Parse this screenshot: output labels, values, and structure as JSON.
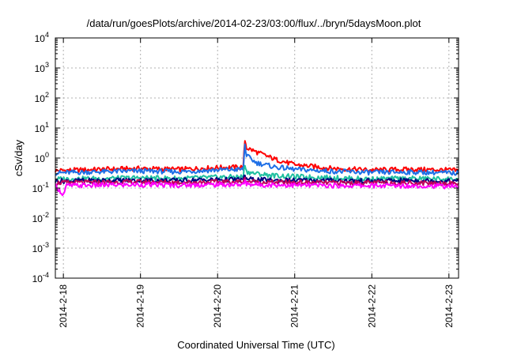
{
  "chart_data": {
    "type": "line",
    "title": "/data/run/goesPlots/archive/2014-02-23/03:00/flux/../bryn/5daysMoon.plot",
    "xlabel": "Coordinated Universal Time (UTC)",
    "ylabel": "cSv/day",
    "yscale": "log",
    "ylim": [
      0.0001,
      10000
    ],
    "xlim": [
      "2014-02-17T21:30",
      "2014-02-23T03:00"
    ],
    "grid": true,
    "legend": "none",
    "x_ticks": [
      {
        "value": "2014-02-18T00:00",
        "label": "2014-2-18"
      },
      {
        "value": "2014-02-19T00:00",
        "label": "2014-2-19"
      },
      {
        "value": "2014-02-20T00:00",
        "label": "2014-2-20"
      },
      {
        "value": "2014-02-21T00:00",
        "label": "2014-2-21"
      },
      {
        "value": "2014-02-22T00:00",
        "label": "2014-2-22"
      },
      {
        "value": "2014-02-23T00:00",
        "label": "2014-2-23"
      }
    ],
    "y_ticks": [
      {
        "value": 0.0001,
        "base": "10",
        "exp": "-4"
      },
      {
        "value": 0.001,
        "base": "10",
        "exp": "-3"
      },
      {
        "value": 0.01,
        "base": "10",
        "exp": "-2"
      },
      {
        "value": 0.1,
        "base": "10",
        "exp": "-1"
      },
      {
        "value": 1,
        "base": "10",
        "exp": "0"
      },
      {
        "value": 10,
        "base": "10",
        "exp": "1"
      },
      {
        "value": 100,
        "base": "10",
        "exp": "2"
      },
      {
        "value": 1000,
        "base": "10",
        "exp": "3"
      },
      {
        "value": 10000,
        "base": "10",
        "exp": "4"
      }
    ],
    "series": [
      {
        "color": "#ff0000",
        "x": [
          "2014-02-17T21:30",
          "2014-02-18T12:00",
          "2014-02-19T00:00",
          "2014-02-19T12:00",
          "2014-02-20T00:00",
          "2014-02-20T08:00",
          "2014-02-20T08:30",
          "2014-02-20T09:00",
          "2014-02-20T12:00",
          "2014-02-20T18:00",
          "2014-02-21T00:00",
          "2014-02-21T12:00",
          "2014-02-22T00:00",
          "2014-02-22T12:00",
          "2014-02-23T00:00",
          "2014-02-23T03:00"
        ],
        "y": [
          0.38,
          0.42,
          0.45,
          0.42,
          0.48,
          0.5,
          4.0,
          2.2,
          1.6,
          0.9,
          0.6,
          0.45,
          0.4,
          0.42,
          0.4,
          0.38
        ]
      },
      {
        "color": "#1e6fe6",
        "x": [
          "2014-02-17T21:30",
          "2014-02-18T12:00",
          "2014-02-19T00:00",
          "2014-02-19T12:00",
          "2014-02-20T00:00",
          "2014-02-20T08:00",
          "2014-02-20T08:30",
          "2014-02-20T09:00",
          "2014-02-20T12:00",
          "2014-02-20T18:00",
          "2014-02-21T00:00",
          "2014-02-21T12:00",
          "2014-02-22T00:00",
          "2014-02-22T12:00",
          "2014-02-23T00:00",
          "2014-02-23T03:00"
        ],
        "y": [
          0.32,
          0.35,
          0.37,
          0.35,
          0.4,
          0.42,
          2.8,
          1.2,
          0.7,
          0.5,
          0.42,
          0.36,
          0.33,
          0.34,
          0.32,
          0.31
        ]
      },
      {
        "color": "#20c0a0",
        "x": [
          "2014-02-17T21:30",
          "2014-02-18T12:00",
          "2014-02-19T00:00",
          "2014-02-19T12:00",
          "2014-02-20T00:00",
          "2014-02-20T08:00",
          "2014-02-20T08:30",
          "2014-02-20T09:00",
          "2014-02-20T12:00",
          "2014-02-20T18:00",
          "2014-02-21T00:00",
          "2014-02-21T12:00",
          "2014-02-22T00:00",
          "2014-02-22T12:00",
          "2014-02-23T00:00",
          "2014-02-23T03:00"
        ],
        "y": [
          0.2,
          0.21,
          0.22,
          0.21,
          0.23,
          0.24,
          0.65,
          0.35,
          0.3,
          0.26,
          0.24,
          0.22,
          0.2,
          0.21,
          0.2,
          0.2
        ]
      },
      {
        "color": "#000080",
        "x": [
          "2014-02-17T21:30",
          "2014-02-18T12:00",
          "2014-02-19T00:00",
          "2014-02-19T12:00",
          "2014-02-20T00:00",
          "2014-02-20T08:00",
          "2014-02-20T08:30",
          "2014-02-20T09:00",
          "2014-02-20T12:00",
          "2014-02-20T18:00",
          "2014-02-21T00:00",
          "2014-02-21T12:00",
          "2014-02-22T00:00",
          "2014-02-22T12:00",
          "2014-02-23T00:00",
          "2014-02-23T03:00"
        ],
        "y": [
          0.17,
          0.18,
          0.18,
          0.18,
          0.19,
          0.19,
          0.26,
          0.2,
          0.19,
          0.18,
          0.18,
          0.18,
          0.17,
          0.18,
          0.17,
          0.17
        ]
      },
      {
        "color": "#c0005a",
        "x": [
          "2014-02-17T21:30",
          "2014-02-18T12:00",
          "2014-02-19T00:00",
          "2014-02-19T12:00",
          "2014-02-20T00:00",
          "2014-02-20T08:00",
          "2014-02-20T08:30",
          "2014-02-20T09:00",
          "2014-02-20T12:00",
          "2014-02-20T18:00",
          "2014-02-21T00:00",
          "2014-02-21T12:00",
          "2014-02-22T00:00",
          "2014-02-22T12:00",
          "2014-02-23T00:00",
          "2014-02-23T03:00"
        ],
        "y": [
          0.15,
          0.155,
          0.16,
          0.155,
          0.16,
          0.165,
          0.2,
          0.17,
          0.16,
          0.155,
          0.155,
          0.15,
          0.15,
          0.15,
          0.145,
          0.145
        ]
      },
      {
        "color": "#ff00ff",
        "x": [
          "2014-02-17T21:30",
          "2014-02-18T00:00",
          "2014-02-18T01:00",
          "2014-02-18T12:00",
          "2014-02-19T00:00",
          "2014-02-19T12:00",
          "2014-02-20T00:00",
          "2014-02-20T08:00",
          "2014-02-20T08:30",
          "2014-02-20T09:00",
          "2014-02-20T12:00",
          "2014-02-21T00:00",
          "2014-02-21T12:00",
          "2014-02-22T00:00",
          "2014-02-22T12:00",
          "2014-02-23T00:00",
          "2014-02-23T03:00"
        ],
        "y": [
          0.12,
          0.06,
          0.12,
          0.125,
          0.13,
          0.125,
          0.13,
          0.13,
          0.17,
          0.14,
          0.13,
          0.125,
          0.12,
          0.12,
          0.12,
          0.115,
          0.115
        ]
      }
    ]
  }
}
